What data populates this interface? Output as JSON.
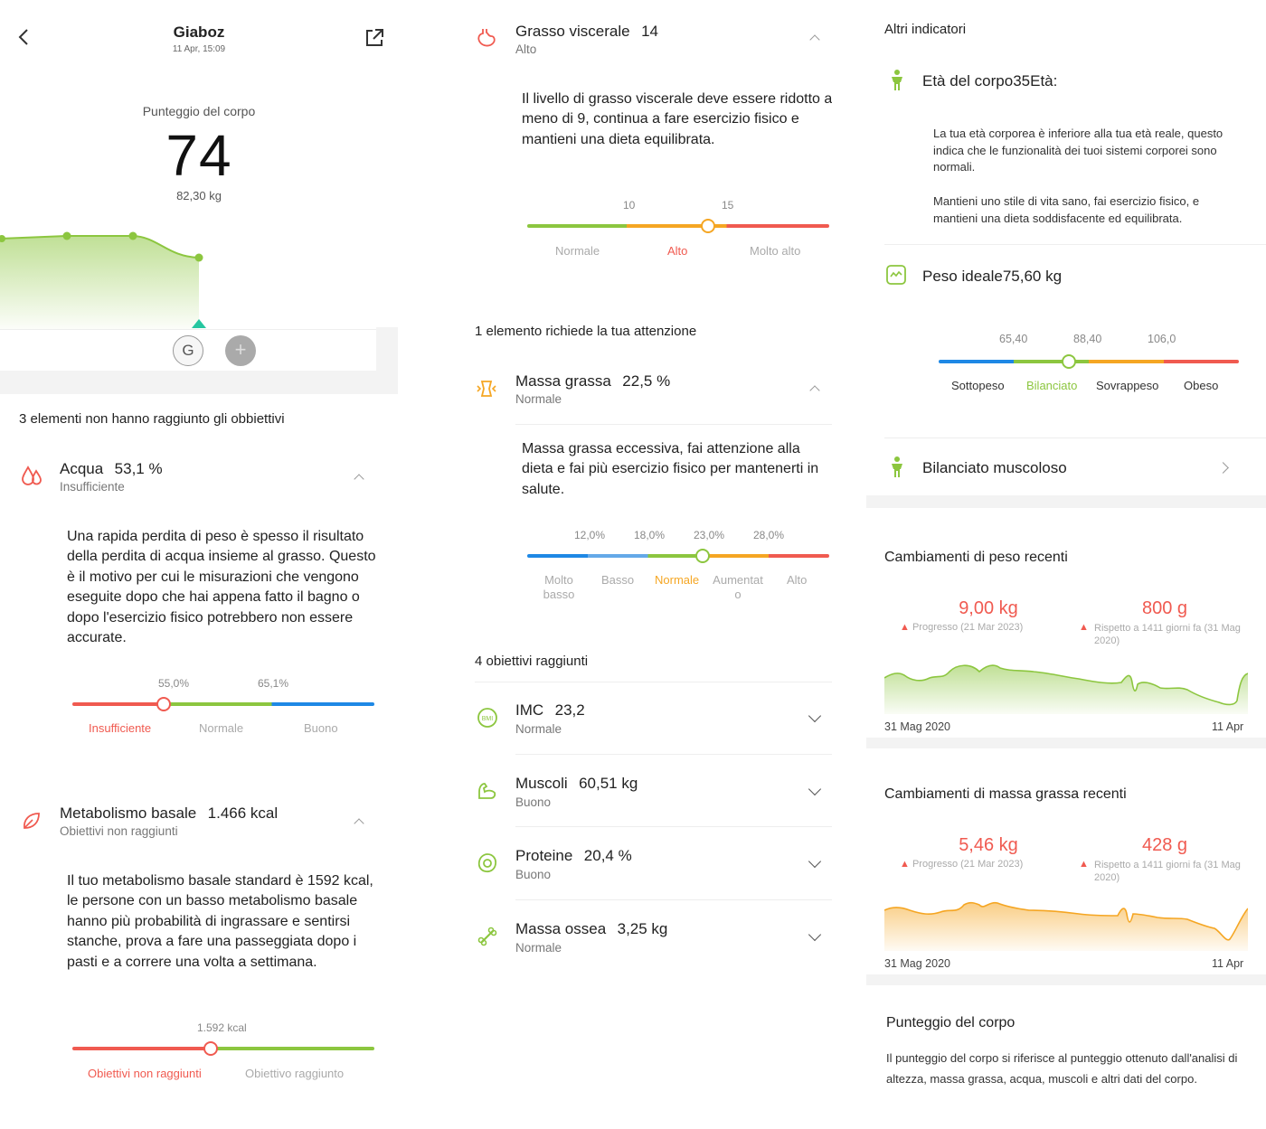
{
  "header": {
    "title": "Giaboz",
    "subtitle": "11 Apr, 15:09"
  },
  "score": {
    "label": "Punteggio del corpo",
    "value": "74",
    "weight": "82,30 kg"
  },
  "avatars": {
    "user_initial": "G",
    "add_symbol": "+"
  },
  "unmet_section_title": "3 elementi non hanno raggiunto gli obbiettivi",
  "acqua": {
    "name": "Acqua",
    "value": "53,1 %",
    "status": "Insufficiente",
    "description": "Una rapida perdita di peso è spesso il risultato della perdita di acqua insieme al grasso. Questo è il motivo per cui le misurazioni che vengono eseguite dopo che hai appena fatto il bagno o dopo l'esercizio fisico potrebbero non essere accurate.",
    "ticks": [
      "55,0%",
      "65,1%"
    ],
    "ranges": [
      "Insufficiente",
      "Normale",
      "Buono"
    ],
    "marker_fraction": 0.3
  },
  "metabolismo": {
    "name": "Metabolismo basale",
    "value": "1.466 kcal",
    "status": "Obiettivi non raggiunti",
    "description": "Il tuo metabolismo basale standard è 1592 kcal, le persone con un basso metabolismo basale hanno più probabilità di ingrassare e sentirsi stanche, prova a fare una passeggiata dopo i pasti e a correre una volta a settimana.",
    "tick": "1.592 kcal",
    "ranges": [
      "Obiettivi non raggiunti",
      "Obiettivo raggiunto"
    ]
  },
  "visceral": {
    "name": "Grasso viscerale",
    "value": "14",
    "status": "Alto",
    "description": "Il livello di grasso viscerale deve essere ridotto a meno di 9, continua a fare esercizio fisico e mantieni una dieta equilibrata.",
    "ticks": [
      "10",
      "15"
    ],
    "ranges": [
      "Normale",
      "Alto",
      "Molto alto"
    ]
  },
  "attention_title": "1 elemento richiede la tua attenzione",
  "massa_grassa": {
    "name": "Massa grassa",
    "value": "22,5 %",
    "status": "Normale",
    "description": "Massa grassa eccessiva, fai attenzione alla dieta e fai più esercizio fisico per mantenerti in salute.",
    "ticks": [
      "12,0%",
      "18,0%",
      "23,0%",
      "28,0%"
    ],
    "ranges": [
      "Molto basso",
      "Basso",
      "Normale",
      "Aumentato",
      "Alto"
    ]
  },
  "achieved_title": "4 obiettivi raggiunti",
  "achieved": [
    {
      "name": "IMC",
      "value": "23,2",
      "status": "Normale",
      "icon": "bmi-icon"
    },
    {
      "name": "Muscoli",
      "value": "60,51 kg",
      "status": "Buono",
      "icon": "muscle-icon"
    },
    {
      "name": "Proteine",
      "value": "20,4 %",
      "status": "Buono",
      "icon": "protein-icon"
    },
    {
      "name": "Massa ossea",
      "value": "3,25 kg",
      "status": "Normale",
      "icon": "bone-icon"
    }
  ],
  "others": {
    "title": "Altri indicatori",
    "eta_label": "Età del corpo",
    "eta_value": "35",
    "eta_suffix": "Età:",
    "eta_desc1": "La tua età corporea è inferiore alla tua età reale, questo indica che le funzionalità dei tuoi sistemi corporei sono normali.",
    "eta_desc2": "Mantieni uno stile di vita sano, fai esercizio fisico, e mantieni una dieta soddisfacente ed equilibrata.",
    "peso_label": "Peso ideale",
    "peso_value": "75,60 kg",
    "peso_ticks": [
      "65,40",
      "88,40",
      "106,0"
    ],
    "peso_ranges": [
      "Sottopeso",
      "Bilanciato",
      "Sovrappeso",
      "Obeso"
    ],
    "body_type": "Bilanciato muscoloso"
  },
  "weight_changes": {
    "title": "Cambiamenti di peso recenti",
    "left_value": "9,00 kg",
    "left_caption": "Progresso (21 Mar 2023)",
    "right_value": "800 g",
    "right_caption": "Rispetto a 1411 giorni fa (31 Mag 2020)",
    "start": "31 Mag 2020",
    "end": "11 Apr"
  },
  "fat_changes": {
    "title": "Cambiamenti di massa grassa recenti",
    "left_value": "5,46 kg",
    "left_caption": "Progresso (21 Mar 2023)",
    "right_value": "428 g",
    "right_caption": "Rispetto a 1411 giorni fa (31 Mag 2020)",
    "start": "31 Mag 2020",
    "end": "11 Apr"
  },
  "score_info": {
    "title": "Punteggio del corpo",
    "text": "Il punteggio del corpo si riferisce al punteggio ottenuto dall'analisi di altezza, massa grassa, acqua, muscoli e altri dati del corpo."
  },
  "colors": {
    "green": "#8cc63f",
    "red": "#f05a50",
    "orange": "#f5a623",
    "blue": "#1e88e5",
    "teal": "#26c6a0"
  }
}
